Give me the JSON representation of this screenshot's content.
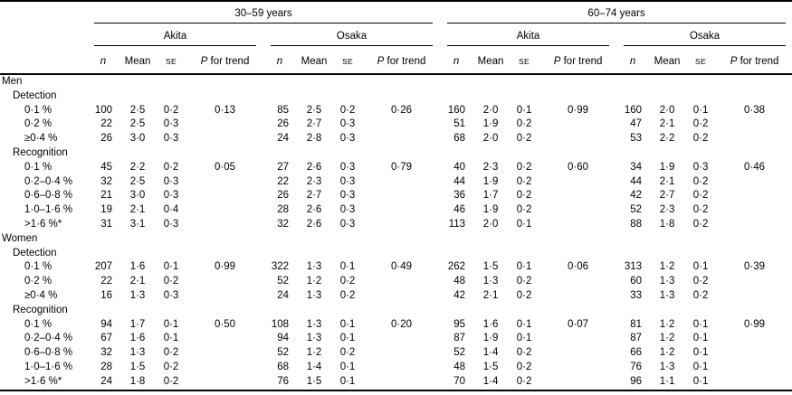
{
  "table": {
    "age_group_headers": [
      "30–59 years",
      "60–74 years"
    ],
    "city_headers": [
      "Akita",
      "Osaka",
      "Akita",
      "Osaka"
    ],
    "stat_headers": {
      "n": "n",
      "mean": "Mean",
      "se": "SE",
      "p_italic": "P",
      "p_rest": "for trend"
    },
    "sections": [
      {
        "label": "Men",
        "subsections": [
          {
            "label": "Detection",
            "rows": [
              {
                "label": "0·1 %",
                "values": [
                  [
                    "100",
                    "2·5",
                    "0·2",
                    "0·13"
                  ],
                  [
                    "85",
                    "2·5",
                    "0·2",
                    "0·26"
                  ],
                  [
                    "160",
                    "2·0",
                    "0·1",
                    "0·99"
                  ],
                  [
                    "160",
                    "2·0",
                    "0·1",
                    "0·38"
                  ]
                ]
              },
              {
                "label": "0·2 %",
                "values": [
                  [
                    "22",
                    "2·5",
                    "0·3",
                    ""
                  ],
                  [
                    "26",
                    "2·7",
                    "0·3",
                    ""
                  ],
                  [
                    "51",
                    "1·9",
                    "0·2",
                    ""
                  ],
                  [
                    "47",
                    "2·1",
                    "0·2",
                    ""
                  ]
                ]
              },
              {
                "label": "≥0·4 %",
                "values": [
                  [
                    "26",
                    "3·0",
                    "0·3",
                    ""
                  ],
                  [
                    "24",
                    "2·8",
                    "0·3",
                    ""
                  ],
                  [
                    "68",
                    "2·0",
                    "0·2",
                    ""
                  ],
                  [
                    "53",
                    "2·2",
                    "0·2",
                    ""
                  ]
                ]
              }
            ]
          },
          {
            "label": "Recognition",
            "rows": [
              {
                "label": "0·1 %",
                "values": [
                  [
                    "45",
                    "2·2",
                    "0·2",
                    "0·05"
                  ],
                  [
                    "27",
                    "2·6",
                    "0·3",
                    "0·79"
                  ],
                  [
                    "40",
                    "2·3",
                    "0·2",
                    "0·60"
                  ],
                  [
                    "34",
                    "1·9",
                    "0·3",
                    "0·46"
                  ]
                ]
              },
              {
                "label": "0·2–0·4 %",
                "values": [
                  [
                    "32",
                    "2·5",
                    "0·3",
                    ""
                  ],
                  [
                    "22",
                    "2·3",
                    "0·3",
                    ""
                  ],
                  [
                    "44",
                    "1·9",
                    "0·2",
                    ""
                  ],
                  [
                    "44",
                    "2·1",
                    "0·2",
                    ""
                  ]
                ]
              },
              {
                "label": "0·6–0·8 %",
                "values": [
                  [
                    "21",
                    "3·0",
                    "0·3",
                    ""
                  ],
                  [
                    "26",
                    "2·7",
                    "0·3",
                    ""
                  ],
                  [
                    "36",
                    "1·7",
                    "0·2",
                    ""
                  ],
                  [
                    "42",
                    "2·7",
                    "0·2",
                    ""
                  ]
                ]
              },
              {
                "label": "1·0–1·6 %",
                "values": [
                  [
                    "19",
                    "2·1",
                    "0·4",
                    ""
                  ],
                  [
                    "28",
                    "2·6",
                    "0·3",
                    ""
                  ],
                  [
                    "46",
                    "1·9",
                    "0·2",
                    ""
                  ],
                  [
                    "52",
                    "2·3",
                    "0·2",
                    ""
                  ]
                ]
              },
              {
                "label": ">1·6 %*",
                "values": [
                  [
                    "31",
                    "3·1",
                    "0·3",
                    ""
                  ],
                  [
                    "32",
                    "2·6",
                    "0·3",
                    ""
                  ],
                  [
                    "113",
                    "2·0",
                    "0·1",
                    ""
                  ],
                  [
                    "88",
                    "1·8",
                    "0·2",
                    ""
                  ]
                ]
              }
            ]
          }
        ]
      },
      {
        "label": "Women",
        "subsections": [
          {
            "label": "Detection",
            "rows": [
              {
                "label": "0·1 %",
                "values": [
                  [
                    "207",
                    "1·6",
                    "0·1",
                    "0·99"
                  ],
                  [
                    "322",
                    "1·3",
                    "0·1",
                    "0·49"
                  ],
                  [
                    "262",
                    "1·5",
                    "0·1",
                    "0·06"
                  ],
                  [
                    "313",
                    "1·2",
                    "0·1",
                    "0·39"
                  ]
                ]
              },
              {
                "label": "0·2 %",
                "values": [
                  [
                    "22",
                    "2·1",
                    "0·2",
                    ""
                  ],
                  [
                    "52",
                    "1·2",
                    "0·2",
                    ""
                  ],
                  [
                    "48",
                    "1·3",
                    "0·2",
                    ""
                  ],
                  [
                    "60",
                    "1·3",
                    "0·2",
                    ""
                  ]
                ]
              },
              {
                "label": "≥0·4 %",
                "values": [
                  [
                    "16",
                    "1·3",
                    "0·3",
                    ""
                  ],
                  [
                    "24",
                    "1·3",
                    "0·2",
                    ""
                  ],
                  [
                    "42",
                    "2·1",
                    "0·2",
                    ""
                  ],
                  [
                    "33",
                    "1·3",
                    "0·2",
                    ""
                  ]
                ]
              }
            ]
          },
          {
            "label": "Recognition",
            "rows": [
              {
                "label": "0·1 %",
                "values": [
                  [
                    "94",
                    "1·7",
                    "0·1",
                    "0·50"
                  ],
                  [
                    "108",
                    "1·3",
                    "0·1",
                    "0·20"
                  ],
                  [
                    "95",
                    "1·6",
                    "0·1",
                    "0·07"
                  ],
                  [
                    "81",
                    "1·2",
                    "0·1",
                    "0·99"
                  ]
                ]
              },
              {
                "label": "0·2–0·4 %",
                "values": [
                  [
                    "67",
                    "1·6",
                    "0·1",
                    ""
                  ],
                  [
                    "94",
                    "1·3",
                    "0·1",
                    ""
                  ],
                  [
                    "87",
                    "1·9",
                    "0·1",
                    ""
                  ],
                  [
                    "87",
                    "1·2",
                    "0·1",
                    ""
                  ]
                ]
              },
              {
                "label": "0·6–0·8 %",
                "values": [
                  [
                    "32",
                    "1·3",
                    "0·2",
                    ""
                  ],
                  [
                    "52",
                    "1·2",
                    "0·2",
                    ""
                  ],
                  [
                    "52",
                    "1·4",
                    "0·2",
                    ""
                  ],
                  [
                    "66",
                    "1·2",
                    "0·1",
                    ""
                  ]
                ]
              },
              {
                "label": "1·0–1·6 %",
                "values": [
                  [
                    "28",
                    "1·5",
                    "0·2",
                    ""
                  ],
                  [
                    "68",
                    "1·4",
                    "0·1",
                    ""
                  ],
                  [
                    "48",
                    "1·5",
                    "0·2",
                    ""
                  ],
                  [
                    "76",
                    "1·3",
                    "0·1",
                    ""
                  ]
                ]
              },
              {
                "label": ">1·6 %*",
                "values": [
                  [
                    "24",
                    "1·8",
                    "0·2",
                    ""
                  ],
                  [
                    "76",
                    "1·5",
                    "0·1",
                    ""
                  ],
                  [
                    "70",
                    "1·4",
                    "0·2",
                    ""
                  ],
                  [
                    "96",
                    "1·1",
                    "0·1",
                    ""
                  ]
                ]
              }
            ]
          }
        ]
      }
    ]
  }
}
